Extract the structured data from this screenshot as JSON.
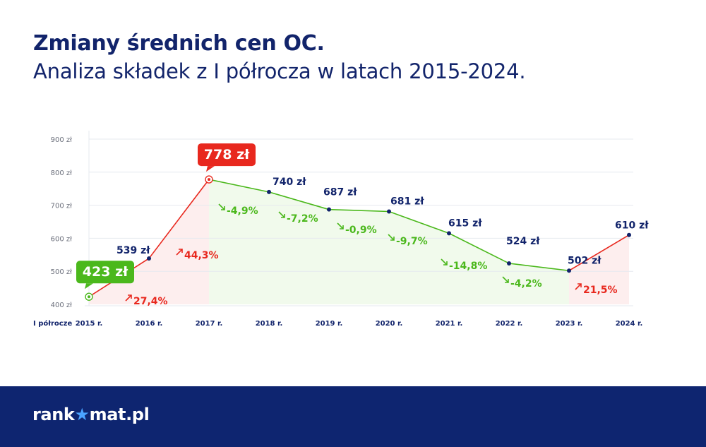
{
  "header": {
    "title": "Zmiany średnich cen OC.",
    "subtitle": "Analiza składek z I półrocza w latach 2015-2024."
  },
  "footer": {
    "logo_left": "rank",
    "logo_star": "★",
    "logo_right": "mat.pl"
  },
  "colors": {
    "navy": "#12246b",
    "red": "#e8281e",
    "green": "#4bb81c",
    "grid": "#e6e9ef",
    "footer": "#0e2570"
  },
  "chart_data": {
    "type": "line",
    "x_axis_label": "I półrocze",
    "categories": [
      "2015 r.",
      "2016 r.",
      "2017 r.",
      "2018 r.",
      "2019 r.",
      "2020 r.",
      "2021 r.",
      "2022 r.",
      "2023 r.",
      "2024 r."
    ],
    "values": [
      423,
      539,
      778,
      740,
      687,
      681,
      615,
      524,
      502,
      610
    ],
    "value_labels": [
      "423 zł",
      "539 zł",
      "778 zł",
      "740 zł",
      "687 zł",
      "681 zł",
      "615 zł",
      "524 zł",
      "502 zł",
      "610 zł"
    ],
    "highlighted_labels": {
      "min_index": 0,
      "max_index": 2
    },
    "changes": [
      "27,4%",
      "44,3%",
      "-4,9%",
      "-7,2%",
      "-0,9%",
      "-9,7%",
      "-14,8%",
      "-4,2%",
      "21,5%"
    ],
    "change_directions": [
      "up",
      "up",
      "down",
      "down",
      "down",
      "down",
      "down",
      "down",
      "up"
    ],
    "y_ticks": [
      "400 zł",
      "500 zł",
      "600 zł",
      "700 zł",
      "800 zł",
      "900 zł"
    ],
    "y_tick_values": [
      400,
      500,
      600,
      700,
      800,
      900
    ],
    "ylim": [
      400,
      900
    ],
    "grid": true
  }
}
